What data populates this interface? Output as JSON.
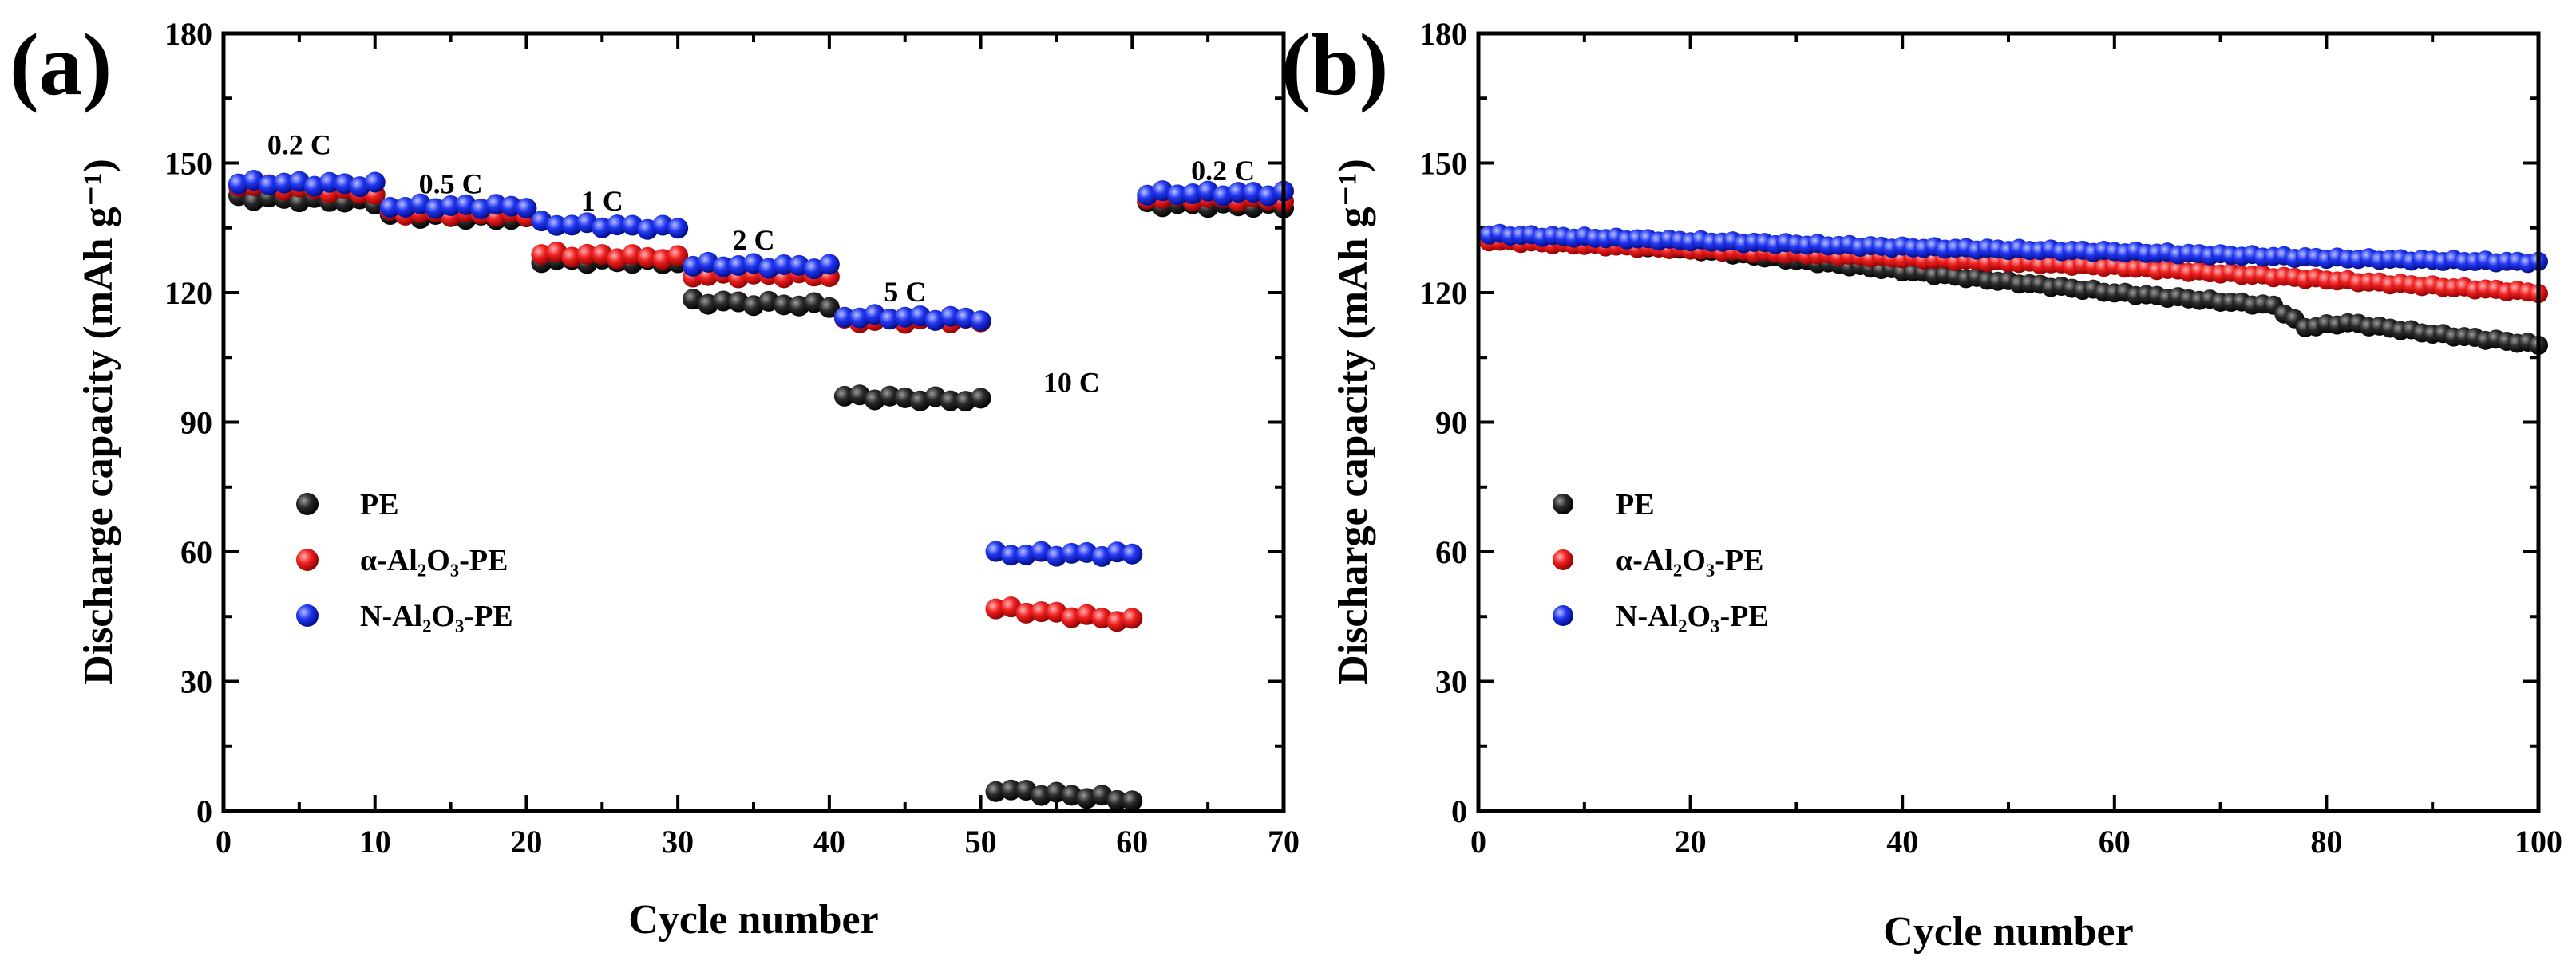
{
  "chart_data": [
    {
      "panel_label": "(a)",
      "type": "scatter",
      "xlabel": "Cycle number",
      "ylabel": "Discharge capacity (mAh g⁻¹)",
      "xlim": [
        0,
        70
      ],
      "ylim": [
        0,
        180
      ],
      "xticks": [
        0,
        10,
        20,
        30,
        40,
        50,
        60,
        70
      ],
      "yticks": [
        0,
        30,
        60,
        90,
        120,
        150,
        180
      ],
      "legend": [
        "PE",
        "α-Al₂O₃-PE",
        "N-Al₂O₃-PE"
      ],
      "rate_labels": [
        {
          "text": "0.2 C",
          "x": 5,
          "y": 152
        },
        {
          "text": "0.5 C",
          "x": 15,
          "y": 143
        },
        {
          "text": "1 C",
          "x": 25,
          "y": 139
        },
        {
          "text": "2 C",
          "x": 35,
          "y": 130
        },
        {
          "text": "5 C",
          "x": 45,
          "y": 118
        },
        {
          "text": "10 C",
          "x": 56,
          "y": 97
        },
        {
          "text": "0.2 C",
          "x": 66,
          "y": 146
        }
      ],
      "series": [
        {
          "name": "PE",
          "color": "#1a1a1a",
          "segments": [
            {
              "x0": 1,
              "x1": 10,
              "v0": 142,
              "v1": 141
            },
            {
              "x0": 11,
              "x1": 20,
              "v0": 138,
              "v1": 137
            },
            {
              "x0": 21,
              "x1": 30,
              "v0": 127.5,
              "v1": 127
            },
            {
              "x0": 31,
              "x1": 40,
              "v0": 118,
              "v1": 117
            },
            {
              "x0": 41,
              "x1": 50,
              "v0": 96,
              "v1": 95
            },
            {
              "x0": 51,
              "x1": 60,
              "v0": 5,
              "v1": 2.5
            },
            {
              "x0": 61,
              "x1": 70,
              "v0": 140.5,
              "v1": 140
            }
          ]
        },
        {
          "name": "α-Al₂O₃-PE",
          "color": "#e8191c",
          "segments": [
            {
              "x0": 1,
              "x1": 10,
              "v0": 145,
              "v1": 143
            },
            {
              "x0": 11,
              "x1": 20,
              "v0": 138.5,
              "v1": 138
            },
            {
              "x0": 21,
              "x1": 30,
              "v0": 129,
              "v1": 128
            },
            {
              "x0": 31,
              "x1": 40,
              "v0": 124,
              "v1": 124
            },
            {
              "x0": 41,
              "x1": 50,
              "v0": 113.5,
              "v1": 113.5
            },
            {
              "x0": 51,
              "x1": 60,
              "v0": 47,
              "v1": 44
            },
            {
              "x0": 61,
              "x1": 70,
              "v0": 142,
              "v1": 141.5
            }
          ]
        },
        {
          "name": "N-Al₂O₃-PE",
          "color": "#1a2fe8",
          "segments": [
            {
              "x0": 1,
              "x1": 10,
              "v0": 145.5,
              "v1": 145
            },
            {
              "x0": 11,
              "x1": 20,
              "v0": 140,
              "v1": 140
            },
            {
              "x0": 21,
              "x1": 30,
              "v0": 136,
              "v1": 135
            },
            {
              "x0": 31,
              "x1": 40,
              "v0": 126.5,
              "v1": 126
            },
            {
              "x0": 41,
              "x1": 50,
              "v0": 114.5,
              "v1": 114
            },
            {
              "x0": 51,
              "x1": 60,
              "v0": 59.5,
              "v1": 59.5
            },
            {
              "x0": 61,
              "x1": 70,
              "v0": 143,
              "v1": 143
            }
          ]
        }
      ]
    },
    {
      "panel_label": "(b)",
      "type": "scatter",
      "xlabel": "Cycle number",
      "ylabel": "Discharge capacity (mAh g⁻¹)",
      "xlim": [
        0,
        100
      ],
      "ylim": [
        0,
        180
      ],
      "xticks": [
        0,
        20,
        40,
        60,
        80,
        100
      ],
      "yticks": [
        0,
        30,
        60,
        90,
        120,
        150,
        180
      ],
      "legend": [
        "PE",
        "α-Al₂O₃-PE",
        "N-Al₂O₃-PE"
      ],
      "series": [
        {
          "name": "PE",
          "color": "#1a1a1a",
          "keypoints": [
            [
              1,
              133
            ],
            [
              20,
              130
            ],
            [
              40,
              125
            ],
            [
              60,
              120
            ],
            [
              75,
              117
            ],
            [
              78,
              112
            ],
            [
              82,
              113
            ],
            [
              90,
              110.5
            ],
            [
              100,
              108
            ]
          ]
        },
        {
          "name": "α-Al₂O₃-PE",
          "color": "#e8191c",
          "keypoints": [
            [
              1,
              132
            ],
            [
              20,
              130
            ],
            [
              40,
              128
            ],
            [
              60,
              126
            ],
            [
              80,
              123
            ],
            [
              100,
              120
            ]
          ]
        },
        {
          "name": "N-Al₂O₃-PE",
          "color": "#1a2fe8",
          "keypoints": [
            [
              1,
              133.5
            ],
            [
              20,
              132
            ],
            [
              40,
              130.5
            ],
            [
              60,
              129.5
            ],
            [
              80,
              128
            ],
            [
              100,
              127
            ]
          ]
        }
      ]
    }
  ]
}
